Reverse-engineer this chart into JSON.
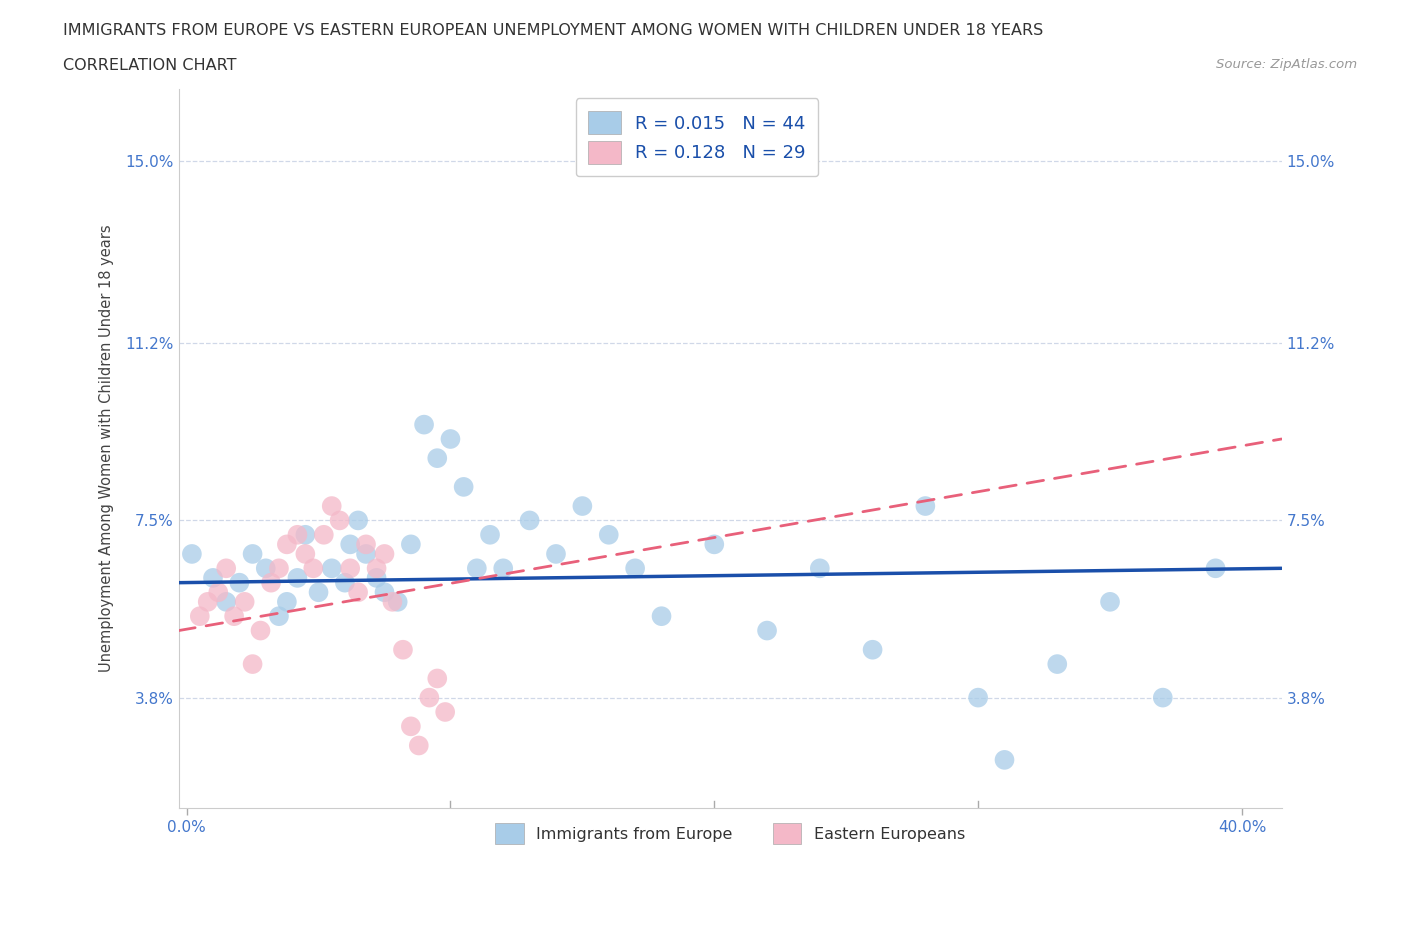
{
  "title": "IMMIGRANTS FROM EUROPE VS EASTERN EUROPEAN UNEMPLOYMENT AMONG WOMEN WITH CHILDREN UNDER 18 YEARS",
  "subtitle": "CORRELATION CHART",
  "source": "Source: ZipAtlas.com",
  "ylabel": "Unemployment Among Women with Children Under 18 years",
  "xlim": [
    -0.003,
    0.415
  ],
  "ylim": [
    0.015,
    0.165
  ],
  "yticks": [
    0.038,
    0.075,
    0.112,
    0.15
  ],
  "ytick_labels": [
    "3.8%",
    "7.5%",
    "11.2%",
    "15.0%"
  ],
  "xticks": [
    0.0,
    0.4
  ],
  "xtick_labels": [
    "0.0%",
    "40.0%"
  ],
  "blue_color": "#a8cce8",
  "pink_color": "#f4b8c8",
  "blue_line_color": "#1a4faa",
  "pink_line_color": "#e8607a",
  "grid_color": "#d0d8e8",
  "tick_color": "#4477cc",
  "R1": 0.015,
  "N1": 44,
  "R2": 0.128,
  "N2": 29,
  "legend_label1": "Immigrants from Europe",
  "legend_label2": "Eastern Europeans",
  "blue_scatter_x": [
    0.002,
    0.01,
    0.015,
    0.02,
    0.025,
    0.03,
    0.035,
    0.038,
    0.042,
    0.045,
    0.05,
    0.055,
    0.06,
    0.062,
    0.065,
    0.068,
    0.072,
    0.075,
    0.08,
    0.085,
    0.09,
    0.095,
    0.1,
    0.105,
    0.11,
    0.115,
    0.12,
    0.13,
    0.14,
    0.15,
    0.16,
    0.17,
    0.18,
    0.2,
    0.22,
    0.24,
    0.26,
    0.28,
    0.3,
    0.31,
    0.33,
    0.35,
    0.37,
    0.39
  ],
  "blue_scatter_y": [
    0.068,
    0.063,
    0.058,
    0.062,
    0.068,
    0.065,
    0.055,
    0.058,
    0.063,
    0.072,
    0.06,
    0.065,
    0.062,
    0.07,
    0.075,
    0.068,
    0.063,
    0.06,
    0.058,
    0.07,
    0.095,
    0.088,
    0.092,
    0.082,
    0.065,
    0.072,
    0.065,
    0.075,
    0.068,
    0.078,
    0.072,
    0.065,
    0.055,
    0.07,
    0.052,
    0.065,
    0.048,
    0.078,
    0.038,
    0.025,
    0.045,
    0.058,
    0.038,
    0.065
  ],
  "pink_scatter_x": [
    0.005,
    0.008,
    0.012,
    0.015,
    0.018,
    0.022,
    0.025,
    0.028,
    0.032,
    0.035,
    0.038,
    0.042,
    0.045,
    0.048,
    0.052,
    0.055,
    0.058,
    0.062,
    0.065,
    0.068,
    0.072,
    0.075,
    0.078,
    0.082,
    0.085,
    0.088,
    0.092,
    0.095,
    0.098
  ],
  "pink_scatter_y": [
    0.055,
    0.058,
    0.06,
    0.065,
    0.055,
    0.058,
    0.045,
    0.052,
    0.062,
    0.065,
    0.07,
    0.072,
    0.068,
    0.065,
    0.072,
    0.078,
    0.075,
    0.065,
    0.06,
    0.07,
    0.065,
    0.068,
    0.058,
    0.048,
    0.032,
    0.028,
    0.038,
    0.042,
    0.035
  ],
  "blue_trend_x0": 0.0,
  "blue_trend_y0": 0.062,
  "blue_trend_x1": 0.4,
  "blue_trend_y1": 0.065,
  "pink_trend_x0": 0.0,
  "pink_trend_y0": 0.052,
  "pink_trend_x1": 0.4,
  "pink_trend_y1": 0.092
}
